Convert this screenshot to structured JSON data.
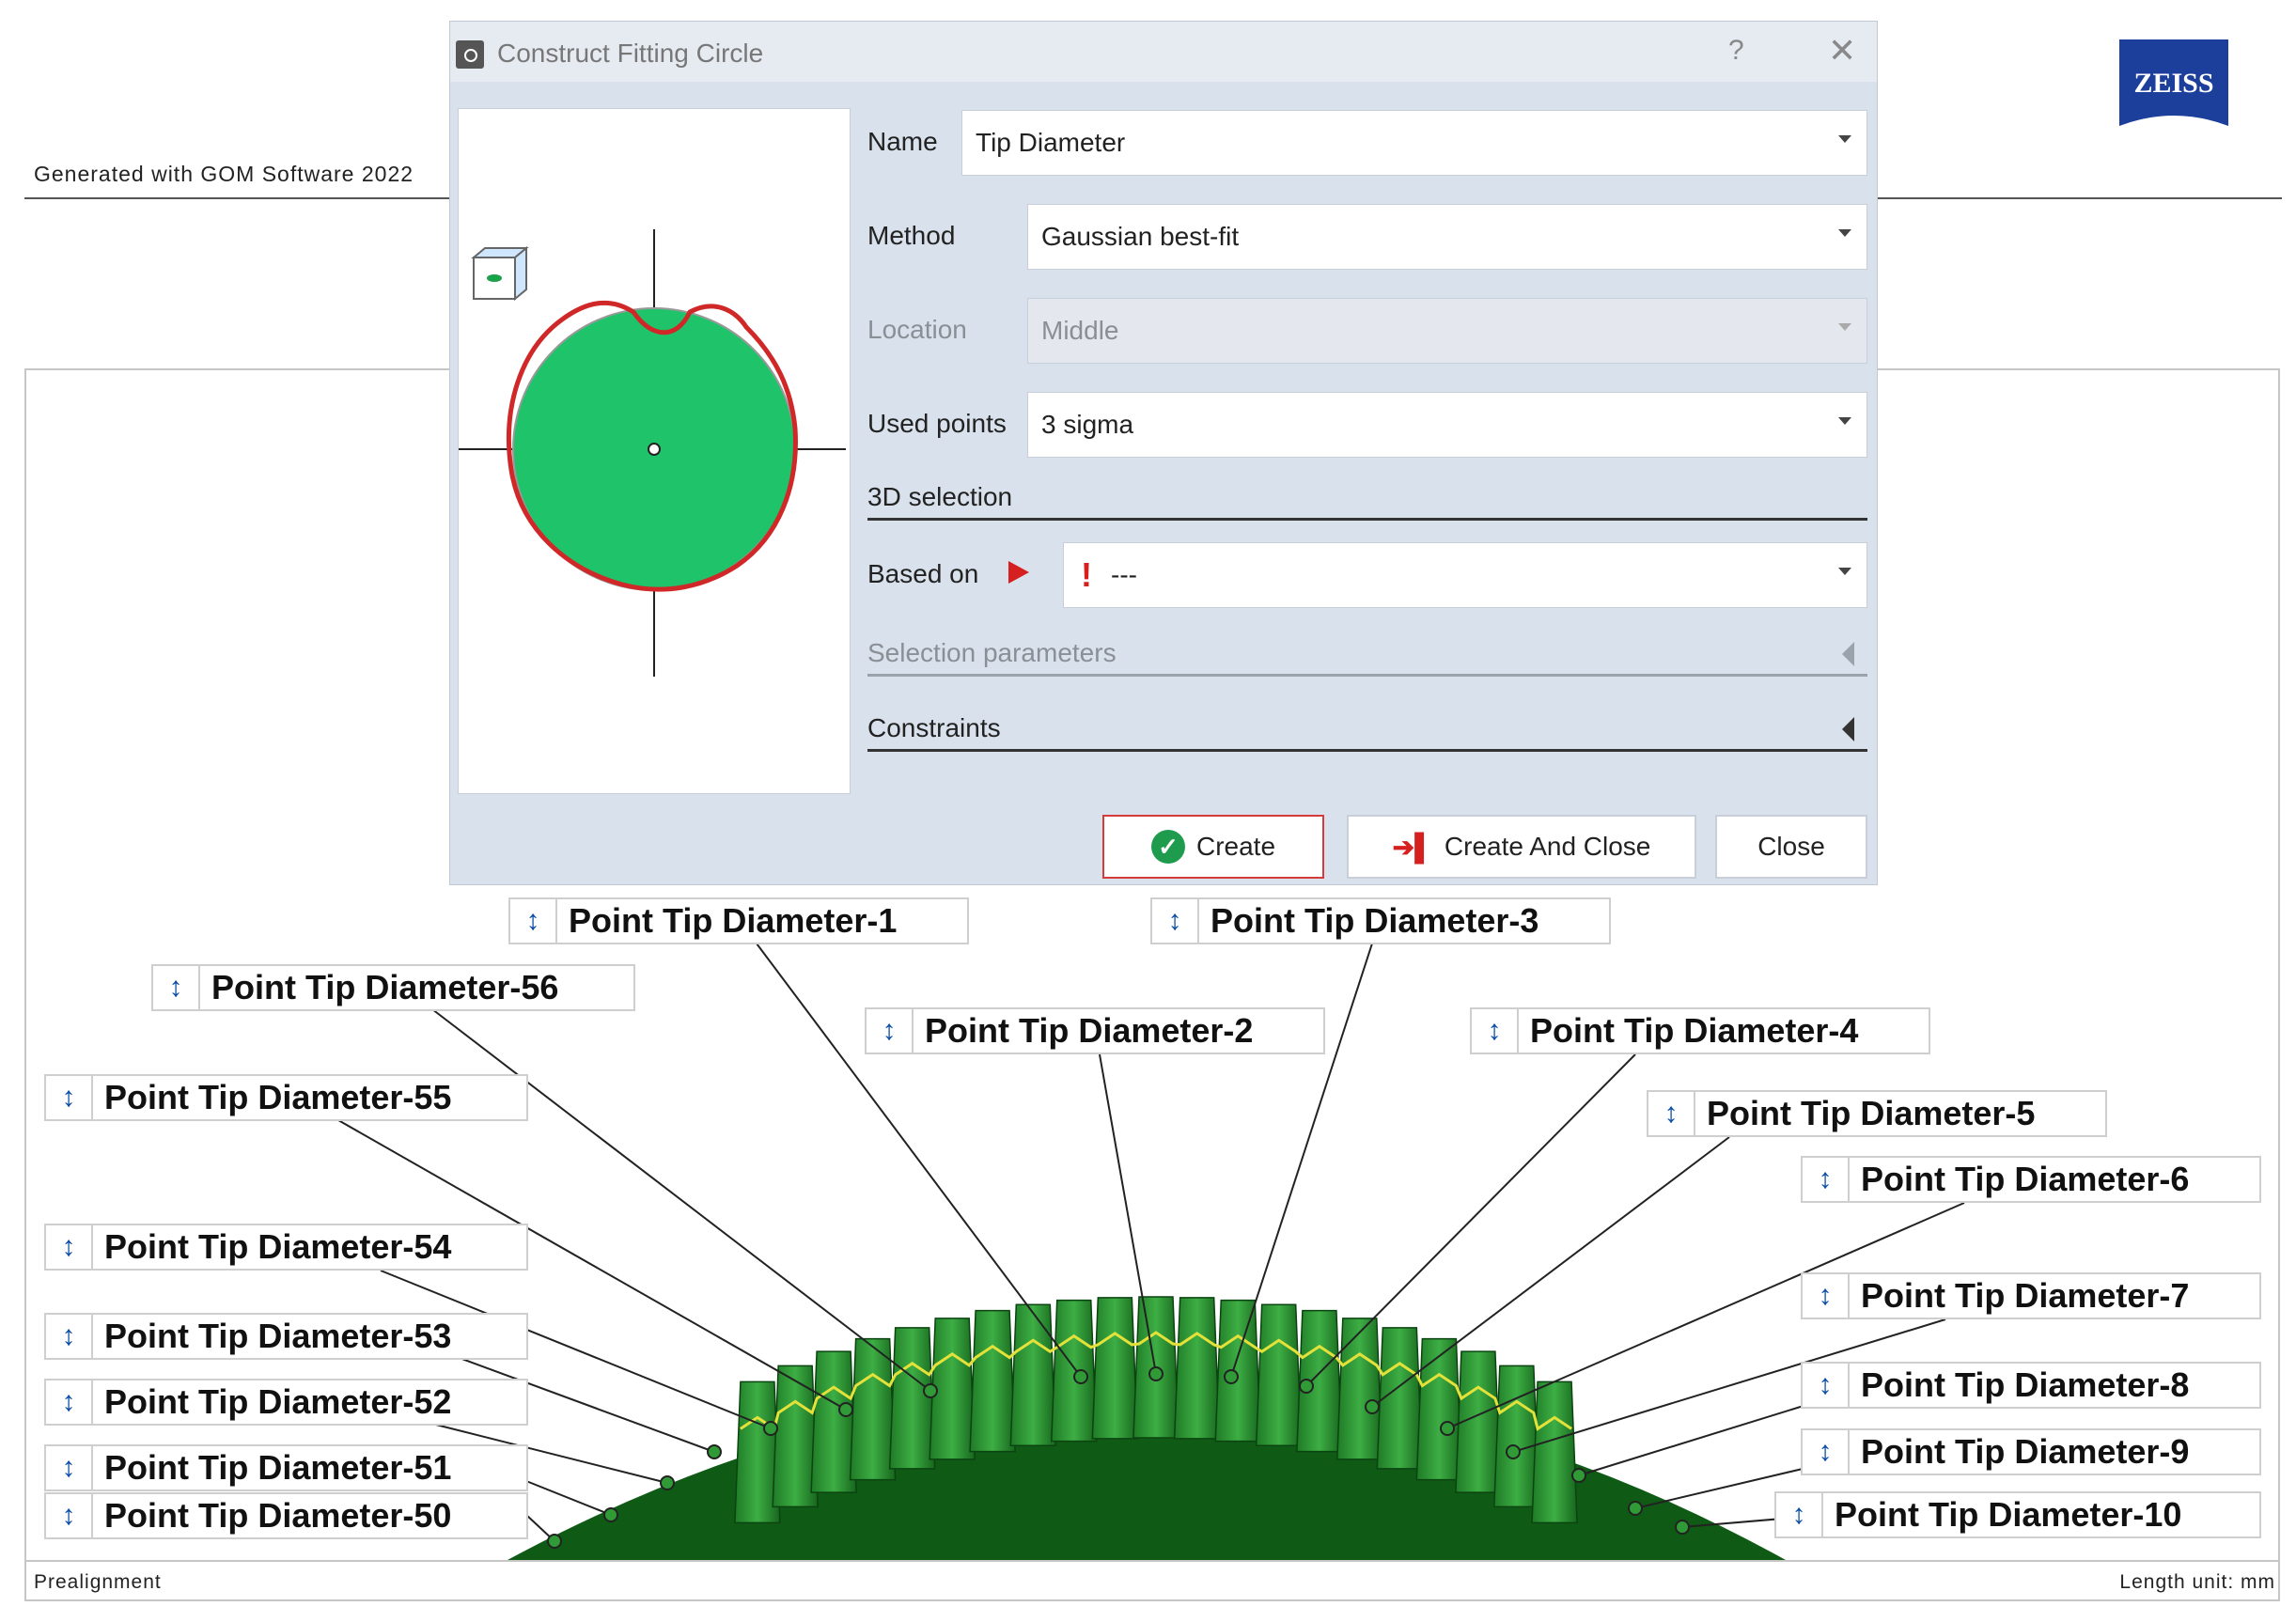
{
  "report": {
    "generated_with": "Generated with GOM Software 2022",
    "logo_text": "ZEISS",
    "footer_left": "Prealignment",
    "footer_right": "Length unit: mm"
  },
  "dialog": {
    "title": "Construct Fitting Circle",
    "help": "?",
    "close_glyph": "✕",
    "name_label": "Name",
    "name_value": "Tip Diameter",
    "method_label": "Method",
    "method_value": "Gaussian best-fit",
    "location_label": "Location",
    "location_value": "Middle",
    "used_points_label": "Used points",
    "used_points_value": "3 sigma",
    "section_3d": "3D selection",
    "based_on_label": "Based on",
    "based_on_value": "---",
    "selection_params": "Selection parameters",
    "constraints": "Constraints",
    "create_label": "Create",
    "create_close_label": "Create And Close",
    "close_label": "Close"
  },
  "labels": {
    "arrow_glyph": "↕",
    "p1": "Point Tip Diameter-1",
    "p2": "Point Tip Diameter-2",
    "p3": "Point Tip Diameter-3",
    "p4": "Point Tip Diameter-4",
    "p5": "Point Tip Diameter-5",
    "p6": "Point Tip Diameter-6",
    "p7": "Point Tip Diameter-7",
    "p8": "Point Tip Diameter-8",
    "p9": "Point Tip Diameter-9",
    "p10": "Point Tip Diameter-10",
    "p50": "Point Tip Diameter-50",
    "p51": "Point Tip Diameter-51",
    "p52": "Point Tip Diameter-52",
    "p53": "Point Tip Diameter-53",
    "p54": "Point Tip Diameter-54",
    "p55": "Point Tip Diameter-55",
    "p56": "Point Tip Diameter-56"
  },
  "colors": {
    "gear_dark": "#0f5a15",
    "gear_mid": "#2f9a36",
    "gear_light": "#48b84e",
    "profile_line": "#e4e23a",
    "fit_fill": "#1fc46a",
    "fit_outline": "#d02828"
  }
}
